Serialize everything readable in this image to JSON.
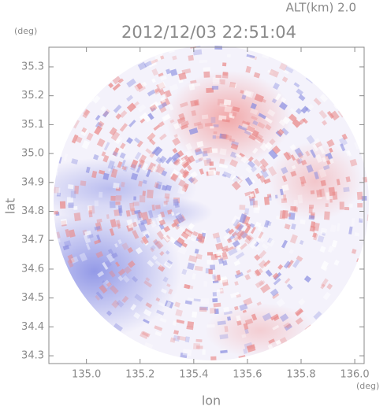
{
  "chart_data": {
    "type": "image",
    "title": "2012/12/03 22:51:04",
    "annotation": "ALT(km) 2.0",
    "x_label": "lon",
    "y_label": "lat",
    "x_unit": "(deg)",
    "y_unit": "(deg)",
    "xlim": [
      134.86,
      136.035
    ],
    "ylim": [
      34.273,
      35.368
    ],
    "xticks": [
      {
        "value": 135,
        "label": "135.0"
      },
      135.2,
      135.4,
      135.6,
      135.8,
      {
        "value": 136,
        "label": "136.0"
      }
    ],
    "yticks": [
      34.3,
      34.4,
      34.5,
      34.6,
      34.7,
      34.8,
      34.9,
      {
        "value": 35,
        "label": "35.0"
      },
      35.1,
      35.2,
      35.3
    ]
  }
}
